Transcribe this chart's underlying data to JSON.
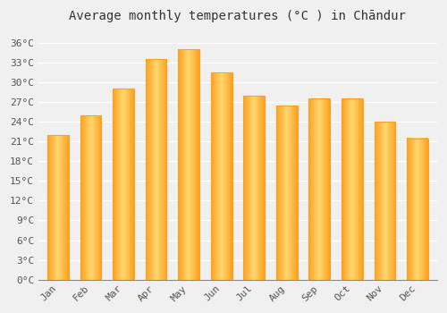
{
  "title": "Average monthly temperatures (°C ) in Chāndur",
  "months": [
    "Jan",
    "Feb",
    "Mar",
    "Apr",
    "May",
    "Jun",
    "Jul",
    "Aug",
    "Sep",
    "Oct",
    "Nov",
    "Dec"
  ],
  "temperatures": [
    22.0,
    25.0,
    29.0,
    33.5,
    35.0,
    31.5,
    28.0,
    26.5,
    27.5,
    27.5,
    24.0,
    21.5
  ],
  "bar_color_light": "#FFD060",
  "bar_color_dark": "#FFA020",
  "ylim": [
    0,
    38
  ],
  "yticks": [
    0,
    3,
    6,
    9,
    12,
    15,
    18,
    21,
    24,
    27,
    30,
    33,
    36
  ],
  "background_color": "#f0f0f0",
  "grid_color": "#ffffff",
  "title_fontsize": 10,
  "tick_fontsize": 8,
  "bar_width": 0.65
}
